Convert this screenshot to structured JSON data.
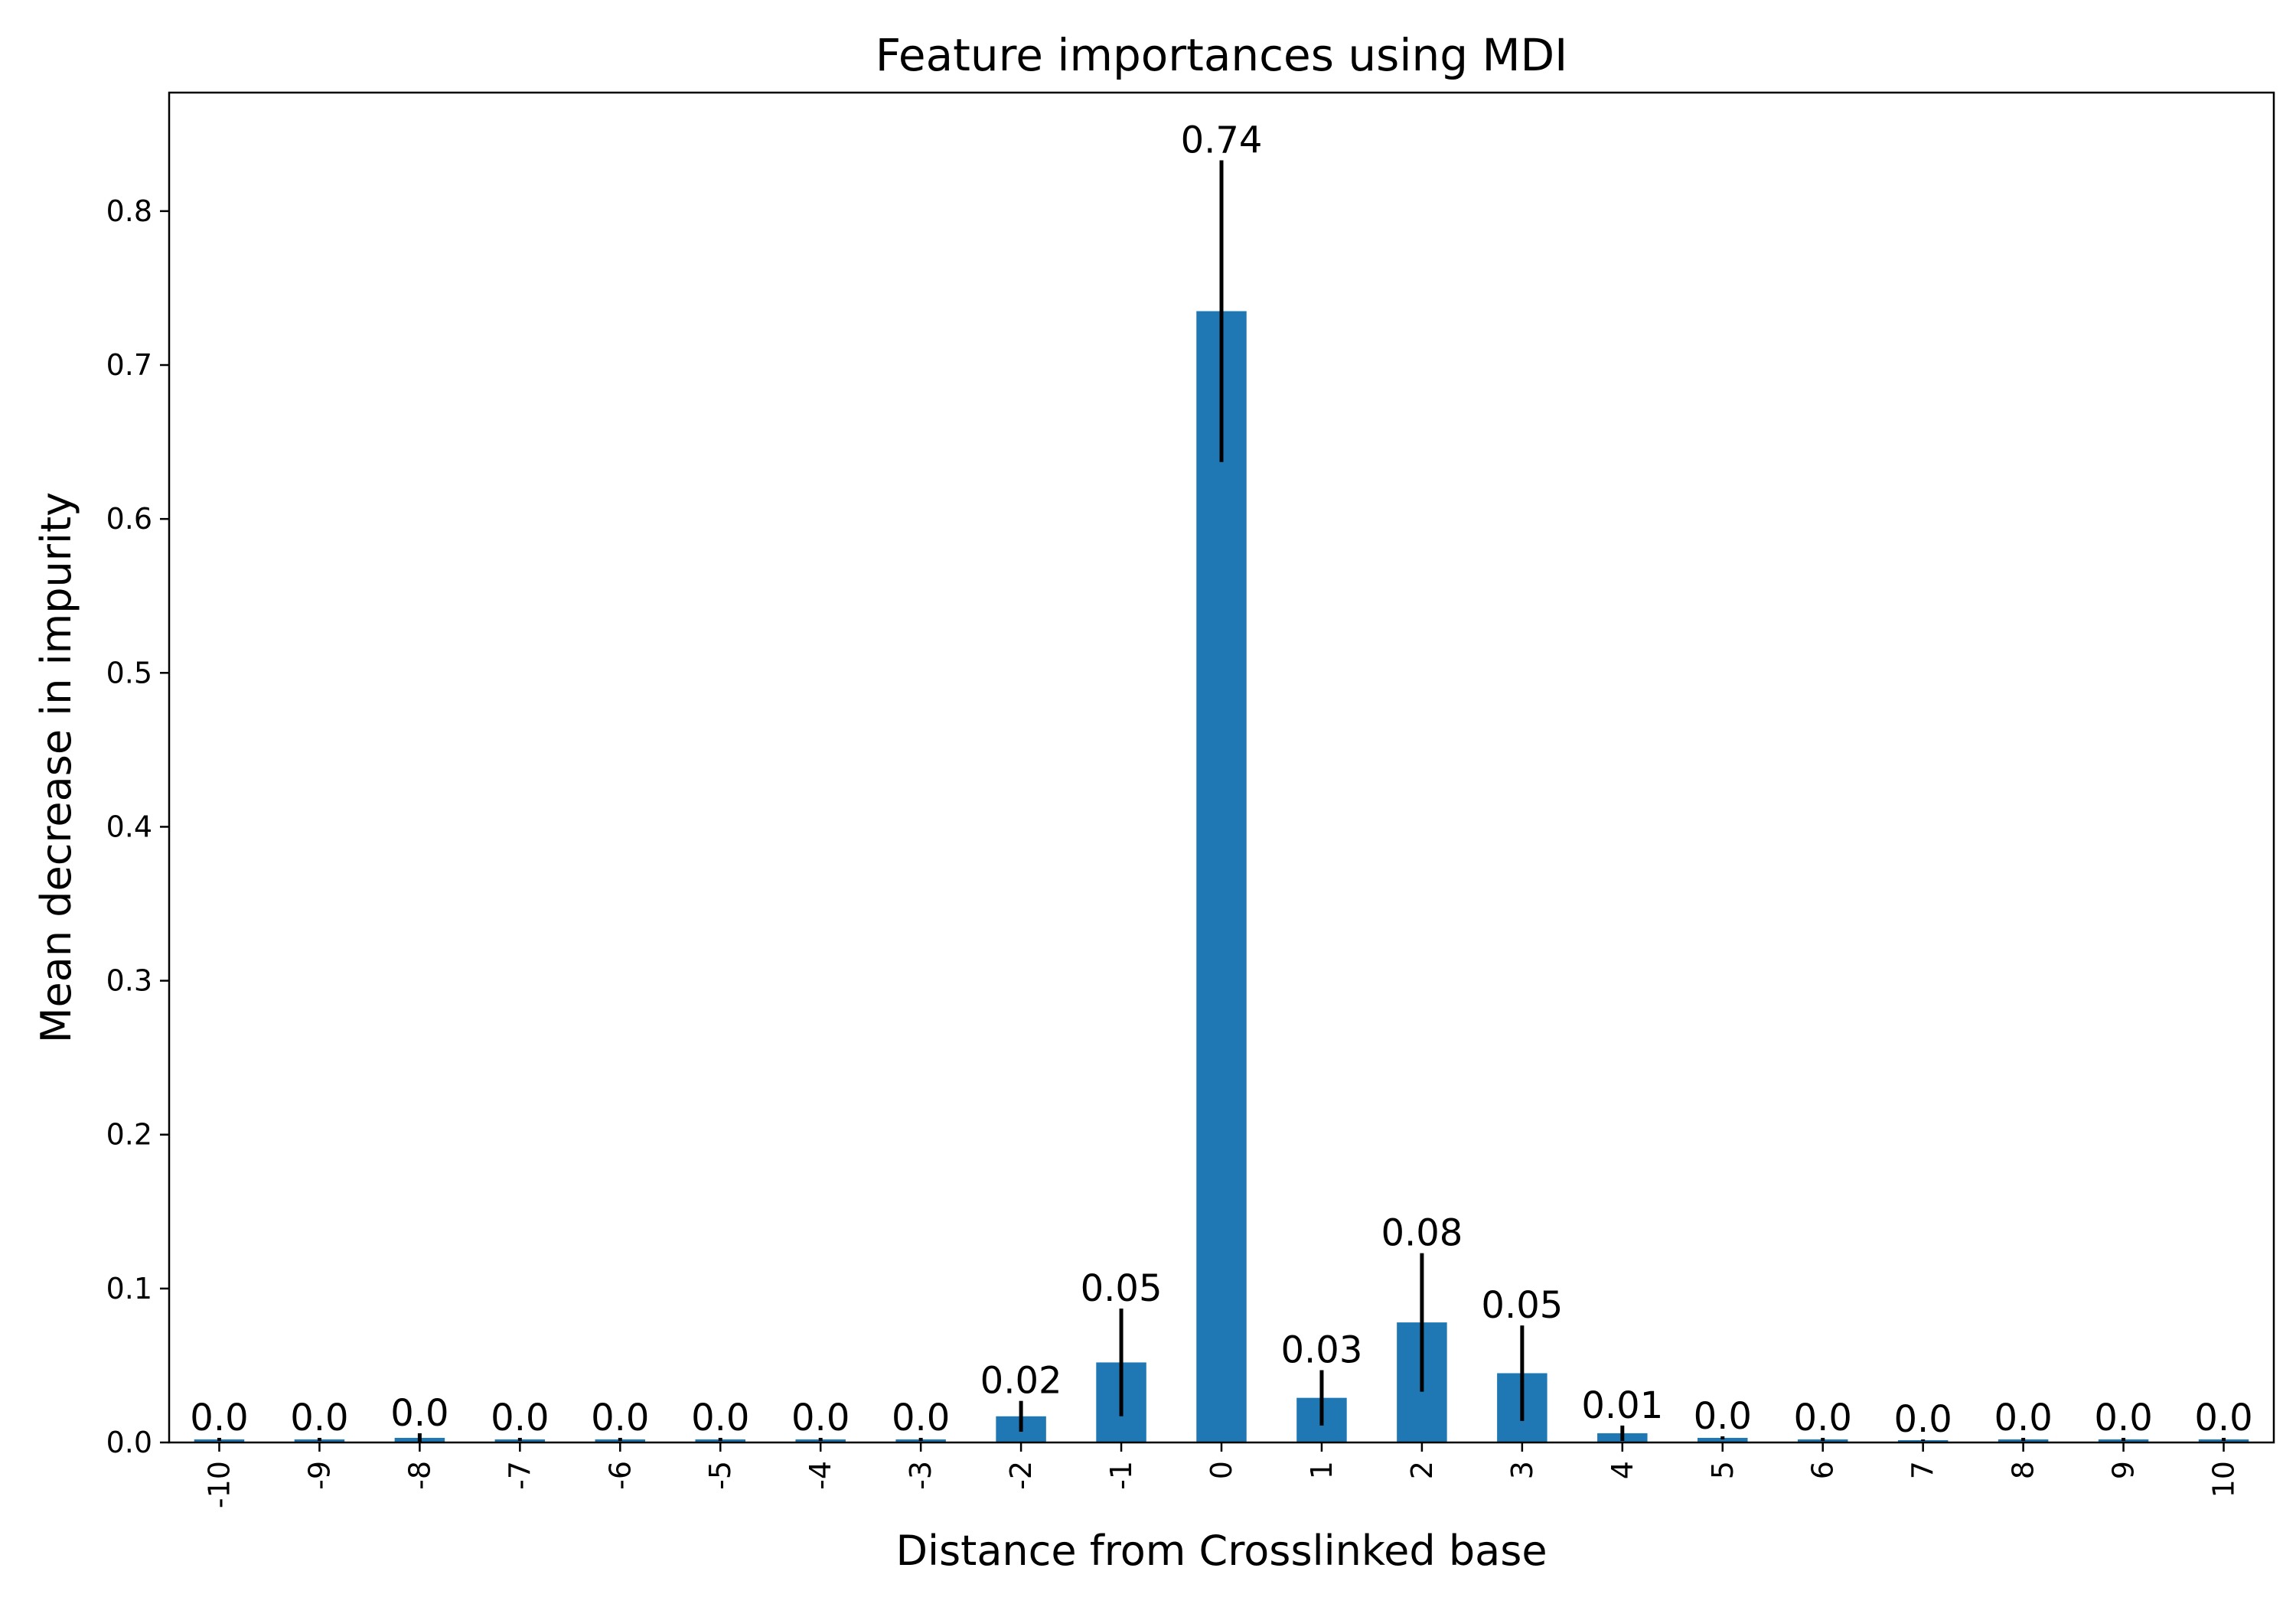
{
  "chart_data": {
    "type": "bar",
    "title": "Feature importances using MDI",
    "xlabel": "Distance from Crosslinked base",
    "ylabel": "Mean decrease in impurity",
    "categories": [
      "-10",
      "-9",
      "-8",
      "-7",
      "-6",
      "-5",
      "-4",
      "-3",
      "-2",
      "-1",
      "0",
      "1",
      "2",
      "3",
      "4",
      "5",
      "6",
      "7",
      "8",
      "9",
      "10"
    ],
    "values": [
      0.002,
      0.002,
      0.003,
      0.002,
      0.002,
      0.002,
      0.002,
      0.002,
      0.017,
      0.052,
      0.735,
      0.029,
      0.078,
      0.045,
      0.006,
      0.003,
      0.002,
      0.0015,
      0.002,
      0.002,
      0.002
    ],
    "errors": [
      0.001,
      0.001,
      0.003,
      0.001,
      0.001,
      0.001,
      0.001,
      0.001,
      0.01,
      0.035,
      0.098,
      0.018,
      0.045,
      0.031,
      0.005,
      0.001,
      0.001,
      0.0005,
      0.001,
      0.001,
      0.001
    ],
    "data_labels": [
      "0.0",
      "0.0",
      "0.0",
      "0.0",
      "0.0",
      "0.0",
      "0.0",
      "0.0",
      "0.02",
      "0.05",
      "0.74",
      "0.03",
      "0.08",
      "0.05",
      "0.01",
      "0.0",
      "0.0",
      "0.0",
      "0.0",
      "0.0",
      "0.0"
    ],
    "ylim": [
      0,
      0.877
    ],
    "yticks": [
      0.0,
      0.1,
      0.2,
      0.3,
      0.4,
      0.5,
      0.6,
      0.7,
      0.8
    ],
    "ytick_labels": [
      "0.0",
      "0.1",
      "0.2",
      "0.3",
      "0.4",
      "0.5",
      "0.6",
      "0.7",
      "0.8"
    ],
    "grid": false,
    "legend": "none",
    "bar_color": "#1f77b4",
    "error_color": "#000000"
  }
}
